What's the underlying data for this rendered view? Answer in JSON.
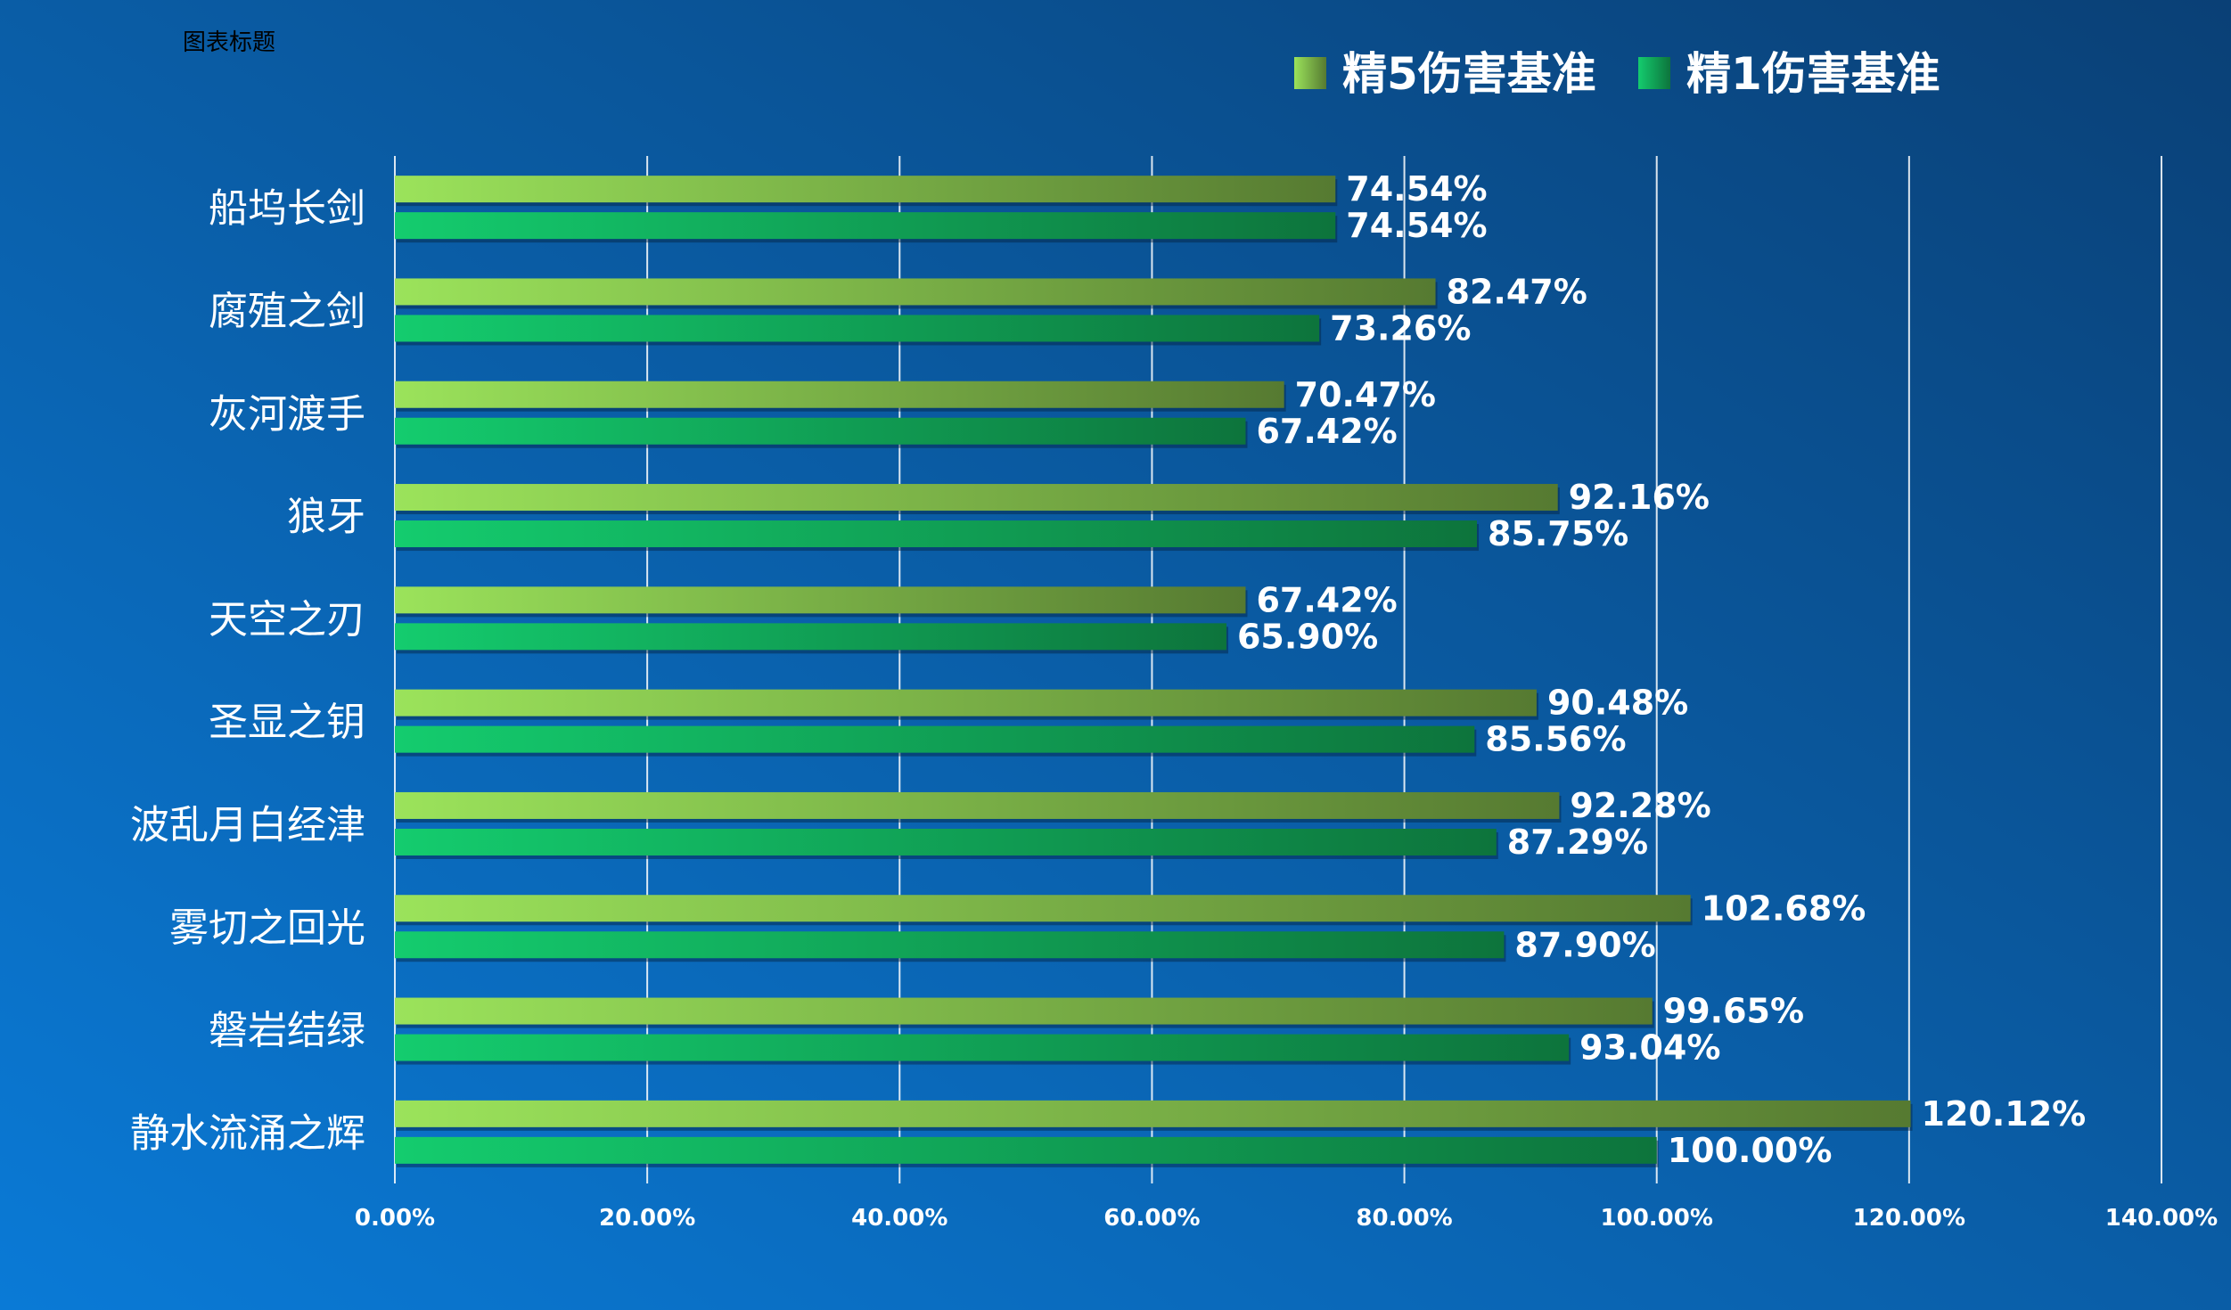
{
  "chart_data": {
    "type": "bar",
    "orientation": "horizontal",
    "title": "图表标题",
    "xlabel": "",
    "ylabel": "",
    "xlim": [
      0,
      1.4
    ],
    "x_ticks": [
      "0.00%",
      "20.00%",
      "40.00%",
      "60.00%",
      "80.00%",
      "100.00%",
      "120.00%",
      "140.00%"
    ],
    "grid": true,
    "legend_position": "top-right",
    "categories": [
      "船坞长剑",
      "腐殖之剑",
      "灰河渡手",
      "狼牙",
      "天空之刃",
      "圣显之钥",
      "波乱月白经津",
      "雾切之回光",
      "磐岩结绿",
      "静水流涌之辉"
    ],
    "series": [
      {
        "name": "精5伤害基准",
        "values": [
          0.7454,
          0.8247,
          0.7047,
          0.9216,
          0.6742,
          0.9048,
          0.9228,
          1.0268,
          0.9965,
          1.2012
        ],
        "labels": [
          "74.54%",
          "82.47%",
          "70.47%",
          "92.16%",
          "67.42%",
          "90.48%",
          "92.28%",
          "102.68%",
          "99.65%",
          "120.12%"
        ],
        "color_light": "#9be35b",
        "color_dark": "#567a31"
      },
      {
        "name": "精1伤害基准",
        "values": [
          0.7454,
          0.7326,
          0.6742,
          0.8575,
          0.659,
          0.8556,
          0.8729,
          0.879,
          0.9304,
          1.0
        ],
        "labels": [
          "74.54%",
          "73.26%",
          "67.42%",
          "85.75%",
          "65.90%",
          "85.56%",
          "87.29%",
          "87.90%",
          "93.04%",
          "100.00%"
        ],
        "color_light": "#14cc6e",
        "color_dark": "#0d743c"
      }
    ],
    "background_color_light": "#0a7ad6",
    "background_color_dark": "#0a4076",
    "text_color": "#ffffff",
    "grid_color": "#ffffff"
  }
}
